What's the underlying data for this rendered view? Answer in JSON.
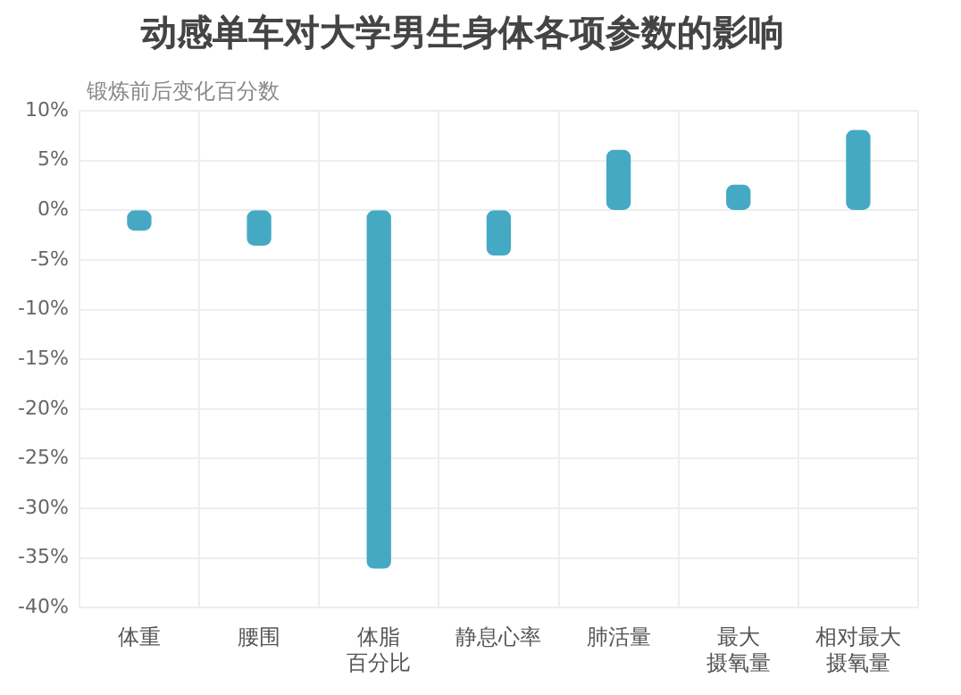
{
  "chart_data": {
    "type": "bar",
    "title": "动感单车对大学男生身体各项参数的影响",
    "ylabel": "锻炼前后变化百分数",
    "categories": [
      "体重",
      "腰围",
      "体脂百分比",
      "静息心率",
      "肺活量",
      "最大摄氧量",
      "相对最大摄氧量"
    ],
    "base": [
      -2,
      -3.5,
      -36,
      -4.5,
      0,
      0,
      0
    ],
    "values": [
      2,
      3.5,
      36,
      4.5,
      6,
      2.5,
      8
    ],
    "color": "#45a9c4",
    "ylim": [
      -40,
      10
    ],
    "yticks": [
      {
        "value": 10,
        "label": "10%"
      },
      {
        "value": 5,
        "label": "5%"
      },
      {
        "value": 0,
        "label": "0%"
      },
      {
        "value": -5,
        "label": "-5%"
      },
      {
        "value": -10,
        "label": "-10%"
      },
      {
        "value": -15,
        "label": "-15%"
      },
      {
        "value": -20,
        "label": "-20%"
      },
      {
        "value": -25,
        "label": "-25%"
      },
      {
        "value": -30,
        "label": "-30%"
      },
      {
        "value": -35,
        "label": "-35%"
      },
      {
        "value": -40,
        "label": "-40%"
      }
    ],
    "grid": true,
    "legend": false
  }
}
